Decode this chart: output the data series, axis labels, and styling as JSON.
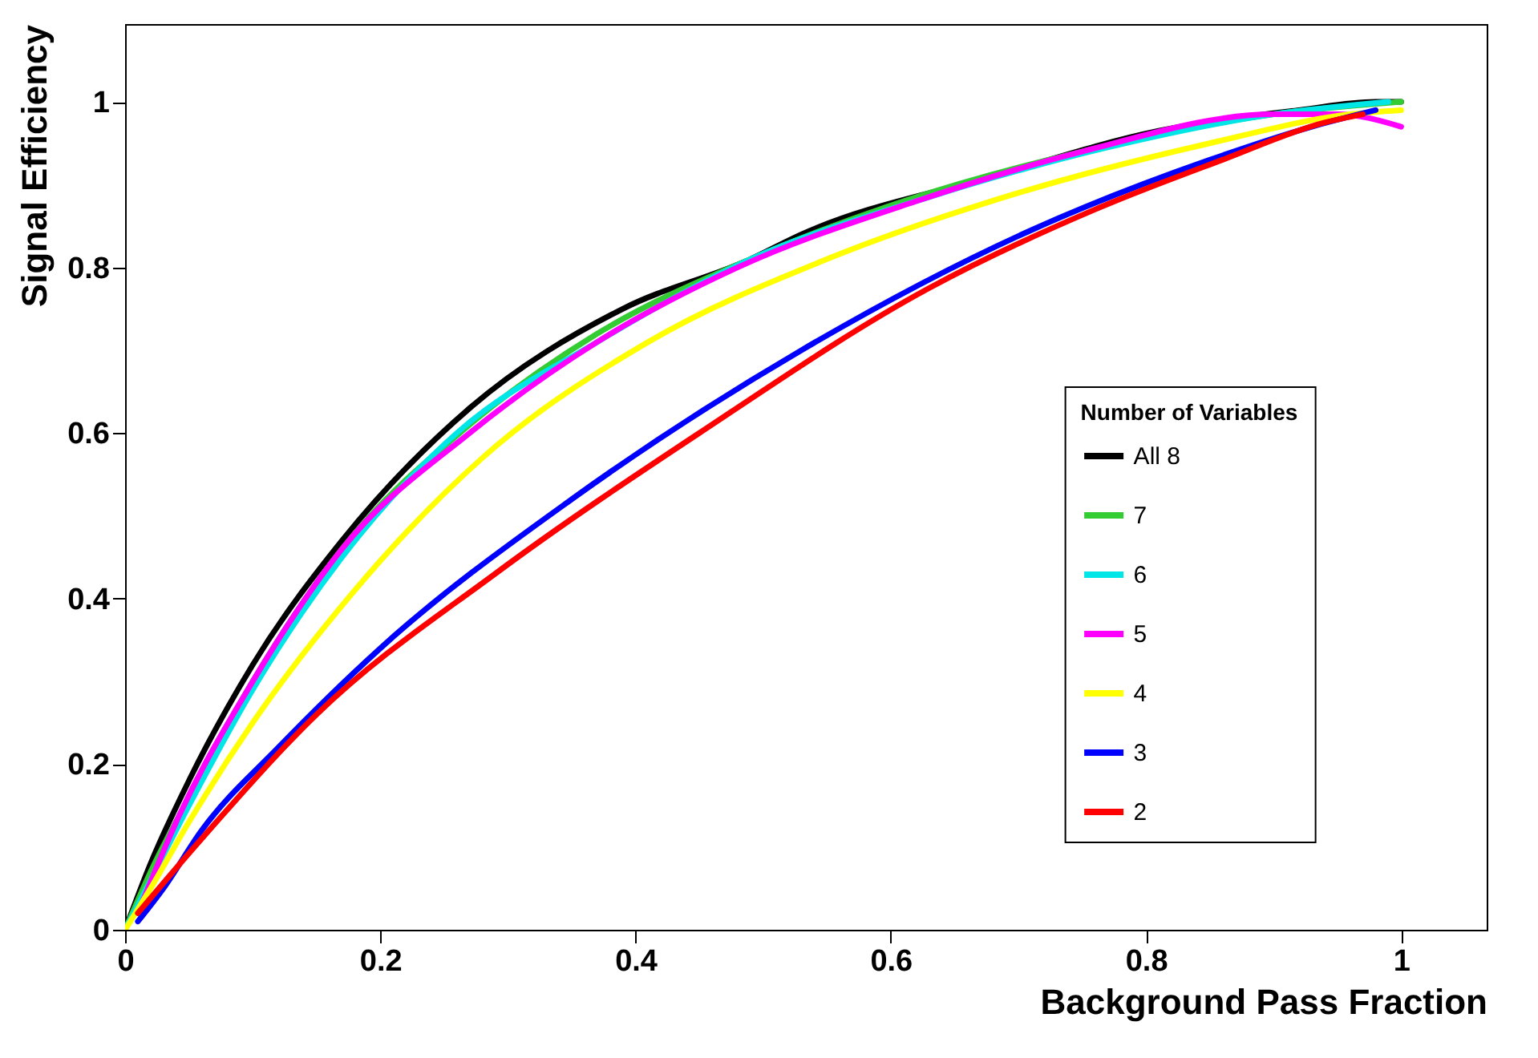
{
  "chart_data": {
    "type": "line",
    "xlabel": "Background Pass Fraction",
    "ylabel": "Signal Efficiency",
    "legend_title": "Number of Variables",
    "legend": "right",
    "xlim": [
      0,
      1.067
    ],
    "ylim": [
      0,
      1.094
    ],
    "xticks": [
      0,
      0.2,
      0.4,
      0.6,
      0.8,
      1
    ],
    "yticks": [
      0,
      0.2,
      0.4,
      0.6,
      0.8,
      1
    ],
    "grid": false,
    "series": [
      {
        "name": "All 8",
        "color": "#000000",
        "x": [
          0,
          0.02,
          0.05,
          0.1,
          0.17,
          0.27,
          0.39,
          0.49,
          0.53,
          0.68,
          0.81,
          0.92,
          0.98,
          1
        ],
        "values": [
          0,
          0.08,
          0.18,
          0.32,
          0.47,
          0.63,
          0.75,
          0.81,
          0.84,
          0.91,
          0.965,
          0.99,
          1,
          1
        ]
      },
      {
        "name": "7",
        "color": "#33cc33",
        "x": [
          0,
          0.02,
          0.05,
          0.1,
          0.17,
          0.27,
          0.37,
          0.49,
          0.61,
          0.75,
          0.9,
          1
        ],
        "values": [
          0,
          0.07,
          0.16,
          0.3,
          0.46,
          0.61,
          0.72,
          0.81,
          0.88,
          0.94,
          0.985,
          1
        ]
      },
      {
        "name": "6",
        "color": "#00e5e5",
        "x": [
          0,
          0.02,
          0.05,
          0.1,
          0.17,
          0.26,
          0.37,
          0.49,
          0.63,
          0.77,
          0.9,
          0.99
        ],
        "values": [
          0,
          0.06,
          0.15,
          0.29,
          0.45,
          0.6,
          0.71,
          0.81,
          0.885,
          0.945,
          0.985,
          1
        ]
      },
      {
        "name": "5",
        "color": "#ff00ff",
        "x": [
          0.01,
          0.04,
          0.1,
          0.17,
          0.27,
          0.37,
          0.48,
          0.62,
          0.75,
          0.9,
          0.95,
          1
        ],
        "values": [
          0.02,
          0.13,
          0.3,
          0.46,
          0.6,
          0.71,
          0.8,
          0.88,
          0.94,
          0.985,
          0.985,
          0.97
        ]
      },
      {
        "name": "4",
        "color": "#ffff00",
        "x": [
          0,
          0.02,
          0.05,
          0.1,
          0.18,
          0.28,
          0.41,
          0.55,
          0.7,
          0.85,
          0.96,
          1
        ],
        "values": [
          0,
          0.05,
          0.13,
          0.25,
          0.41,
          0.57,
          0.71,
          0.81,
          0.89,
          0.95,
          0.985,
          0.99
        ]
      },
      {
        "name": "3",
        "color": "#0000ff",
        "x": [
          0.01,
          0.03,
          0.06,
          0.12,
          0.2,
          0.35,
          0.53,
          0.71,
          0.85,
          0.93,
          0.98
        ],
        "values": [
          0.01,
          0.05,
          0.12,
          0.22,
          0.34,
          0.52,
          0.7,
          0.845,
          0.93,
          0.97,
          0.99
        ]
      },
      {
        "name": "2",
        "color": "#ff0000",
        "x": [
          0.01,
          0.06,
          0.15,
          0.29,
          0.45,
          0.63,
          0.76,
          0.86,
          0.94,
          0.97
        ],
        "values": [
          0.02,
          0.11,
          0.26,
          0.43,
          0.6,
          0.775,
          0.87,
          0.93,
          0.975,
          0.985
        ]
      }
    ]
  }
}
